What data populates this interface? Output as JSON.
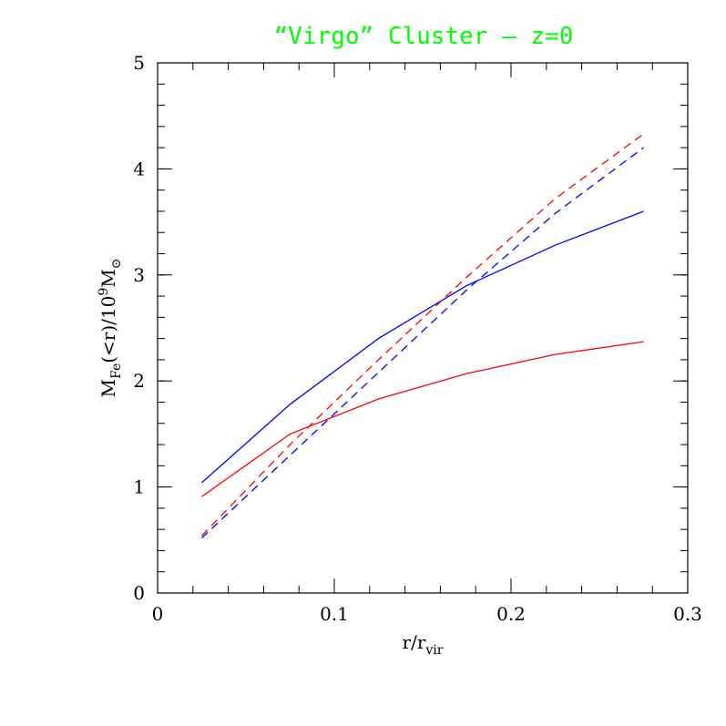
{
  "chart_data": {
    "type": "line",
    "title": "“Virgo” Cluster – z=0",
    "title_color": "#00ff00",
    "xlabel": {
      "main": "r/r",
      "sub": "vir"
    },
    "ylabel": {
      "m": "M",
      "sub": "Fe",
      "rest": "(<r)/10",
      "sup": "9",
      "m2": "M",
      "sun": "⊙"
    },
    "xlim": [
      0,
      0.3
    ],
    "ylim": [
      0,
      5
    ],
    "xticks": [
      {
        "value": 0,
        "label": "0"
      },
      {
        "value": 0.1,
        "label": "0.1"
      },
      {
        "value": 0.2,
        "label": "0.2"
      },
      {
        "value": 0.3,
        "label": "0.3"
      }
    ],
    "yticks": [
      {
        "value": 0,
        "label": "0"
      },
      {
        "value": 1,
        "label": "1"
      },
      {
        "value": 2,
        "label": "2"
      },
      {
        "value": 3,
        "label": "3"
      },
      {
        "value": 4,
        "label": "4"
      },
      {
        "value": 5,
        "label": "5"
      }
    ],
    "x": [
      0.025,
      0.075,
      0.125,
      0.175,
      0.225,
      0.275
    ],
    "series": [
      {
        "color": "#0000ff",
        "dash": "solid",
        "values": [
          1.04,
          1.78,
          2.4,
          2.9,
          3.28,
          3.6
        ]
      },
      {
        "color": "#ff0000",
        "dash": "solid",
        "values": [
          0.91,
          1.5,
          1.83,
          2.07,
          2.25,
          2.37
        ]
      },
      {
        "color": "#ff0000",
        "dash": "dashed",
        "values": [
          0.54,
          1.4,
          2.2,
          2.98,
          3.72,
          4.33
        ]
      },
      {
        "color": "#0000ff",
        "dash": "dashed",
        "values": [
          0.52,
          1.3,
          2.08,
          2.86,
          3.58,
          4.2
        ]
      }
    ],
    "grid": false,
    "legend": "none"
  }
}
